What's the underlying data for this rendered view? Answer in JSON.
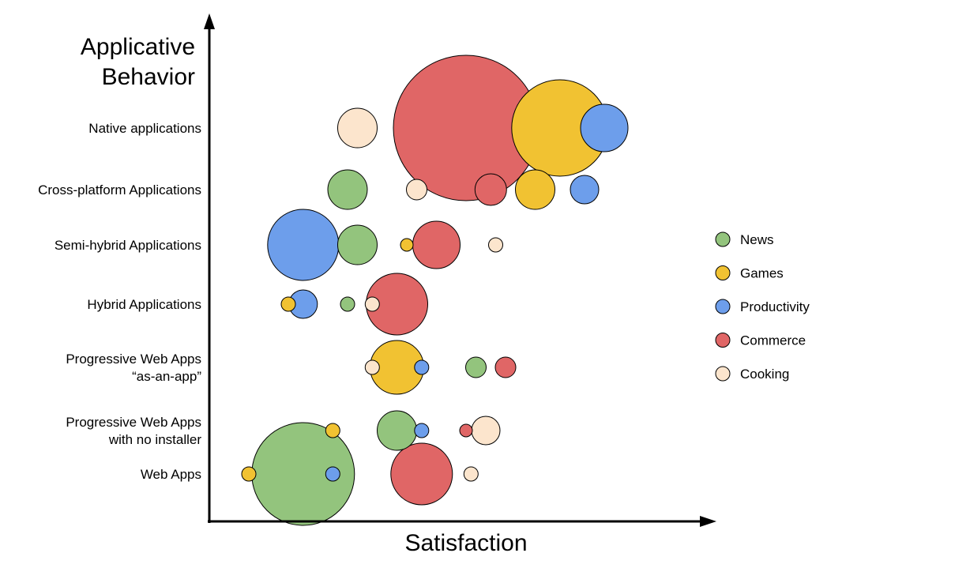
{
  "chart_data": {
    "type": "scatter",
    "subtype": "bubble",
    "title": "",
    "xlabel": "Satisfaction",
    "ylabel_lines": [
      "Applicative",
      "Behavior"
    ],
    "categories": [
      [
        "Native applications"
      ],
      [
        "Cross-platform Applications"
      ],
      [
        "Semi-hybrid Applications"
      ],
      [
        "Hybrid Applications"
      ],
      [
        "Progressive Web Apps",
        "“as-an-app”"
      ],
      [
        "Progressive Web Apps",
        "with no installer"
      ],
      [
        "Web Apps"
      ]
    ],
    "x_range": [
      0,
      100
    ],
    "legend_position": "right",
    "colors": {
      "News": "#93c47d",
      "Games": "#f1c232",
      "Productivity": "#6d9eeb",
      "Commerce": "#e06666",
      "Cooking": "#fce5cd"
    },
    "series": [
      {
        "name": "Commerce",
        "points": [
          {
            "x": 52,
            "cat": 0,
            "size": 92
          },
          {
            "x": 57,
            "cat": 1,
            "size": 20
          },
          {
            "x": 46,
            "cat": 2,
            "size": 30
          },
          {
            "x": 38,
            "cat": 3,
            "size": 39
          },
          {
            "x": 60,
            "cat": 4,
            "size": 13
          },
          {
            "x": 52,
            "cat": 5,
            "size": 8
          },
          {
            "x": 43,
            "cat": 6,
            "size": 39
          }
        ]
      },
      {
        "name": "Games",
        "points": [
          {
            "x": 71,
            "cat": 0,
            "size": 61
          },
          {
            "x": 66,
            "cat": 1,
            "size": 25
          },
          {
            "x": 40,
            "cat": 2,
            "size": 8
          },
          {
            "x": 16,
            "cat": 3,
            "size": 9
          },
          {
            "x": 38,
            "cat": 4,
            "size": 34
          },
          {
            "x": 25,
            "cat": 5,
            "size": 9
          },
          {
            "x": 8,
            "cat": 6,
            "size": 9
          }
        ]
      },
      {
        "name": "Productivity",
        "points": [
          {
            "x": 80,
            "cat": 0,
            "size": 30
          },
          {
            "x": 76,
            "cat": 1,
            "size": 18
          },
          {
            "x": 19,
            "cat": 2,
            "size": 45
          },
          {
            "x": 19,
            "cat": 3,
            "size": 18
          },
          {
            "x": 43,
            "cat": 4,
            "size": 9
          },
          {
            "x": 43,
            "cat": 5,
            "size": 9
          },
          {
            "x": 25,
            "cat": 6,
            "size": 9
          }
        ]
      },
      {
        "name": "News",
        "points": [
          {
            "x": 28,
            "cat": 1,
            "size": 25
          },
          {
            "x": 30,
            "cat": 2,
            "size": 25
          },
          {
            "x": 28,
            "cat": 3,
            "size": 9
          },
          {
            "x": 54,
            "cat": 4,
            "size": 13
          },
          {
            "x": 38,
            "cat": 5,
            "size": 25
          },
          {
            "x": 19,
            "cat": 6,
            "size": 65
          }
        ]
      },
      {
        "name": "Cooking",
        "points": [
          {
            "x": 30,
            "cat": 0,
            "size": 25
          },
          {
            "x": 42,
            "cat": 1,
            "size": 13
          },
          {
            "x": 58,
            "cat": 2,
            "size": 9
          },
          {
            "x": 33,
            "cat": 3,
            "size": 9
          },
          {
            "x": 33,
            "cat": 4,
            "size": 9
          },
          {
            "x": 56,
            "cat": 5,
            "size": 18
          },
          {
            "x": 53,
            "cat": 6,
            "size": 9
          }
        ]
      }
    ],
    "legend": [
      "News",
      "Games",
      "Productivity",
      "Commerce",
      "Cooking"
    ]
  }
}
